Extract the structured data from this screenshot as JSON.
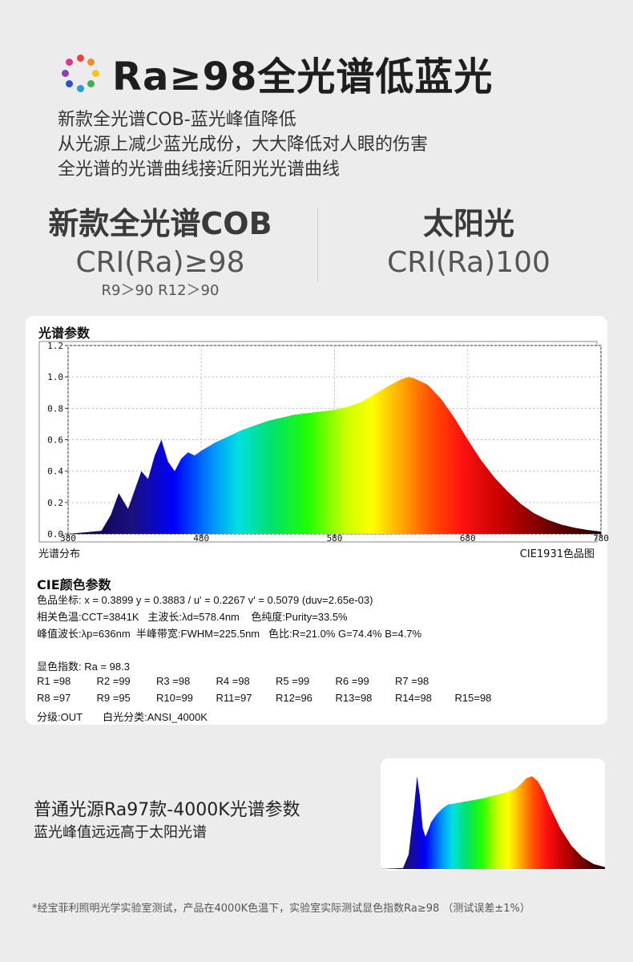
{
  "hero": {
    "title": "Ra≥98全光谱低蓝光",
    "dot_colors": [
      "#e8433d",
      "#f28c1e",
      "#f5c518",
      "#3cb34a",
      "#2a9be0",
      "#2e4fc9",
      "#8e3fb8",
      "#e0368f"
    ]
  },
  "intro": {
    "lines": [
      "新款全光谱COB-蓝光峰值降低",
      "从光源上减少蓝光成份，大大降低对人眼的伤害",
      "全光谱的光谱曲线接近阳光光谱曲线"
    ]
  },
  "compare": {
    "left": {
      "name": "新款全光谱COB",
      "cri": "CRI(Ra)≥98",
      "sub": "R9＞90   R12＞90"
    },
    "right": {
      "name": "太阳光",
      "cri": "CRI(Ra)100"
    }
  },
  "spectrum_card": {
    "title": "光谱参数",
    "footer_left": "光谱分布",
    "footer_right": "CIE1931色品图",
    "cie_title": "CIE颜色参数",
    "cie_lines": [
      "色品坐标: x = 0.3899 y = 0.3883 / u' = 0.2267 v' = 0.5079 (duv=2.65e-03)",
      "相关色温:CCT=3841K   主波长:λd=578.4nm    色纯度:Purity=33.5%",
      "峰值波长:λp=636nm  半峰带宽:FWHM=225.5nm   色比:R=21.0% G=74.4% B=4.7%",
      "",
      "显色指数: Ra = 98.3"
    ],
    "r_rows": [
      [
        "R1 =98",
        "R2 =99",
        "R3 =98",
        "R4 =98",
        "R5 =99",
        "R6 =99",
        "R7 =98"
      ],
      [
        "R8 =97",
        "R9 =95",
        "R10=99",
        "R11=97",
        "R12=96",
        "R13=98",
        "R14=98",
        "R15=98"
      ]
    ],
    "grade_line": "分级:OUT       白光分类:ANSI_4000K"
  },
  "chart_data": [
    {
      "type": "area",
      "xlim": [
        380,
        780
      ],
      "ylim": [
        0,
        1.2
      ],
      "x_ticks": [
        "380",
        "480",
        "580",
        "680",
        "780"
      ],
      "y_ticks": [
        "0.0",
        "0.2",
        "0.4",
        "0.6",
        "0.8",
        "1.0",
        "1.2"
      ],
      "x": [
        380,
        405,
        412,
        418,
        425,
        430,
        435,
        440,
        445,
        450,
        455,
        460,
        465,
        470,
        475,
        480,
        490,
        500,
        510,
        520,
        530,
        540,
        550,
        560,
        570,
        580,
        590,
        600,
        610,
        620,
        630,
        636,
        640,
        650,
        660,
        670,
        680,
        690,
        700,
        710,
        720,
        730,
        740,
        750,
        760,
        770,
        780
      ],
      "y": [
        0.0,
        0.02,
        0.12,
        0.26,
        0.16,
        0.28,
        0.4,
        0.35,
        0.5,
        0.6,
        0.46,
        0.4,
        0.48,
        0.52,
        0.5,
        0.53,
        0.58,
        0.62,
        0.66,
        0.69,
        0.72,
        0.74,
        0.76,
        0.77,
        0.78,
        0.79,
        0.81,
        0.84,
        0.89,
        0.94,
        0.985,
        1.0,
        0.99,
        0.95,
        0.86,
        0.74,
        0.6,
        0.47,
        0.36,
        0.27,
        0.19,
        0.13,
        0.09,
        0.06,
        0.04,
        0.025,
        0.015
      ]
    },
    {
      "type": "area",
      "xlim": [
        380,
        780
      ],
      "ylim": [
        0,
        1.1
      ],
      "x": [
        380,
        420,
        430,
        440,
        445,
        450,
        455,
        460,
        465,
        470,
        480,
        490,
        500,
        520,
        540,
        560,
        580,
        600,
        620,
        630,
        640,
        650,
        660,
        670,
        680,
        700,
        720,
        740,
        760,
        780
      ],
      "y": [
        0.0,
        0.01,
        0.15,
        0.65,
        0.95,
        0.75,
        0.42,
        0.33,
        0.4,
        0.48,
        0.56,
        0.62,
        0.66,
        0.68,
        0.7,
        0.72,
        0.75,
        0.78,
        0.82,
        0.87,
        0.93,
        0.95,
        0.9,
        0.8,
        0.66,
        0.42,
        0.24,
        0.12,
        0.05,
        0.02
      ]
    }
  ],
  "bottom": {
    "title": "普通光源Ra97款-4000K光谱参数",
    "subtitle": "蓝光峰值远远高于太阳光谱"
  },
  "footnote": "*经宝菲利照明光学实验室测试，产品在4000K色温下，实验室实际测试显色指数Ra≥98 （测试误差±1%）"
}
